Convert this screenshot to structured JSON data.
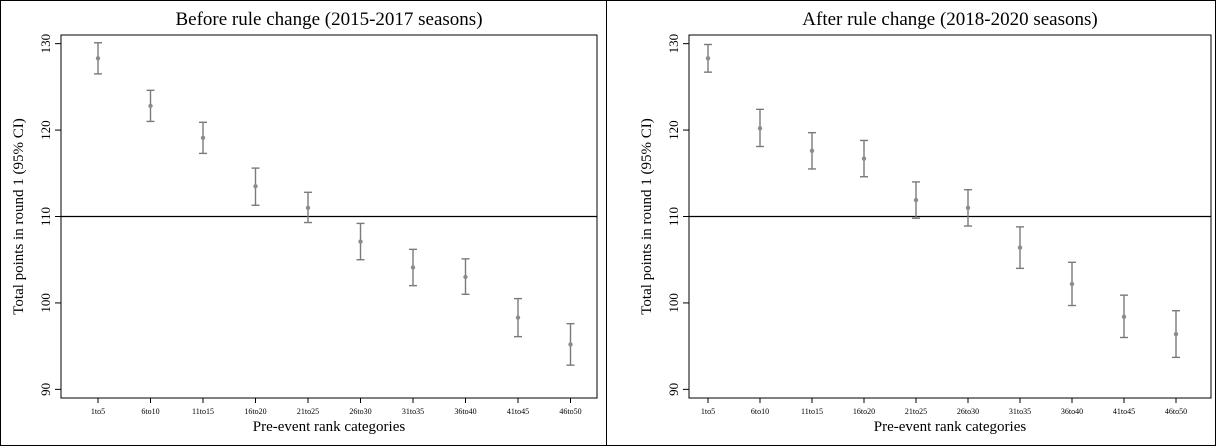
{
  "chart_data": [
    {
      "type": "scatter",
      "title": "Before rule change (2015-2017 seasons)",
      "xlabel": "Pre-event rank categories",
      "ylabel": "Total points in round 1 (95% CI)",
      "ylim": [
        89,
        131
      ],
      "yticks": [
        90,
        100,
        110,
        120,
        130
      ],
      "reference_line": 110,
      "categories": [
        "1to5",
        "6to10",
        "11to15",
        "16to20",
        "21to25",
        "26to30",
        "31to35",
        "36to40",
        "41to45",
        "46to50"
      ],
      "values": [
        128.3,
        122.8,
        119.1,
        113.5,
        111.0,
        107.1,
        104.1,
        103.0,
        98.3,
        95.2
      ],
      "ci_lower": [
        126.5,
        121.0,
        117.3,
        111.3,
        109.3,
        105.0,
        102.0,
        101.0,
        96.1,
        92.8
      ],
      "ci_upper": [
        130.1,
        124.6,
        120.9,
        115.6,
        112.8,
        109.2,
        106.2,
        105.1,
        100.5,
        97.6
      ],
      "grid": false
    },
    {
      "type": "scatter",
      "title": "After rule change (2018-2020 seasons)",
      "xlabel": "Pre-event rank categories",
      "ylabel": "Total points in round 1 (95% CI)",
      "ylim": [
        89,
        131
      ],
      "yticks": [
        90,
        100,
        110,
        120,
        130
      ],
      "reference_line": 110,
      "categories": [
        "1to5",
        "6to10",
        "11to15",
        "16to20",
        "21to25",
        "26to30",
        "31to35",
        "36to40",
        "41to45",
        "46to50"
      ],
      "values": [
        128.3,
        120.2,
        117.6,
        116.7,
        111.9,
        111.0,
        106.4,
        102.2,
        98.4,
        96.4
      ],
      "ci_lower": [
        126.7,
        118.1,
        115.5,
        114.6,
        109.8,
        108.9,
        104.0,
        99.7,
        96.0,
        93.7
      ],
      "ci_upper": [
        129.9,
        122.4,
        119.7,
        118.8,
        114.0,
        113.1,
        108.8,
        104.7,
        100.9,
        99.1
      ],
      "grid": false
    }
  ]
}
